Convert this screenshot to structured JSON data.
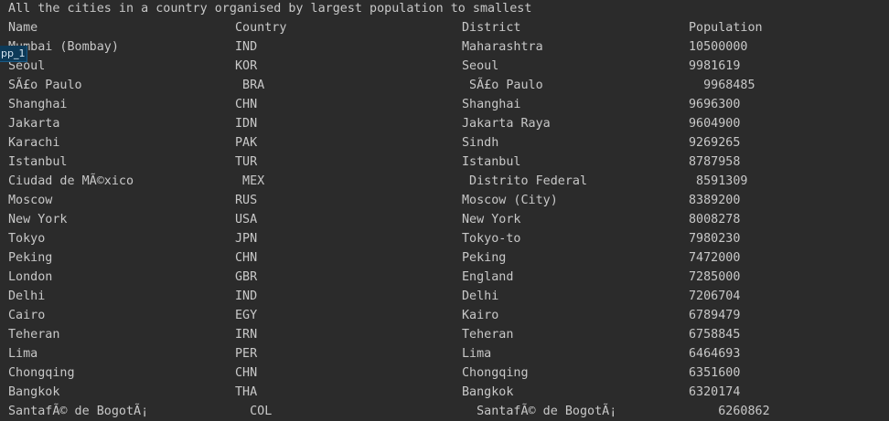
{
  "console": {
    "title_line": "All the cities in a country organised by largest population to smallest",
    "headers": [
      "Name",
      "Country",
      "District",
      "Population"
    ],
    "rows": [
      {
        "name": "Mumbai (Bombay)",
        "country": "IND",
        "district": "Maharashtra",
        "population": "10500000"
      },
      {
        "name": "Seoul",
        "country": "KOR",
        "district": "Seoul",
        "population": "9981619"
      },
      {
        "name": "SÃ£o Paulo",
        "country": " BRA",
        "district": " SÃ£o Paulo",
        "population": "  9968485"
      },
      {
        "name": "Shanghai",
        "country": "CHN",
        "district": "Shanghai",
        "population": "9696300"
      },
      {
        "name": "Jakarta",
        "country": "IDN",
        "district": "Jakarta Raya",
        "population": "9604900"
      },
      {
        "name": "Karachi",
        "country": "PAK",
        "district": "Sindh",
        "population": "9269265"
      },
      {
        "name": "Istanbul",
        "country": "TUR",
        "district": "Istanbul",
        "population": "8787958"
      },
      {
        "name": "Ciudad de MÃ©xico",
        "country": " MEX",
        "district": " Distrito Federal",
        "population": " 8591309"
      },
      {
        "name": "Moscow",
        "country": "RUS",
        "district": "Moscow (City)",
        "population": "8389200"
      },
      {
        "name": "New York",
        "country": "USA",
        "district": "New York",
        "population": "8008278"
      },
      {
        "name": "Tokyo",
        "country": "JPN",
        "district": "Tokyo-to",
        "population": "7980230"
      },
      {
        "name": "Peking",
        "country": "CHN",
        "district": "Peking",
        "population": "7472000"
      },
      {
        "name": "London",
        "country": "GBR",
        "district": "England",
        "population": "7285000"
      },
      {
        "name": "Delhi",
        "country": "IND",
        "district": "Delhi",
        "population": "7206704"
      },
      {
        "name": "Cairo",
        "country": "EGY",
        "district": "Kairo",
        "population": "6789479"
      },
      {
        "name": "Teheran",
        "country": "IRN",
        "district": "Teheran",
        "population": "6758845"
      },
      {
        "name": "Lima",
        "country": "PER",
        "district": "Lima",
        "population": "6464693"
      },
      {
        "name": "Chongqing",
        "country": "CHN",
        "district": "Chongqing",
        "population": "6351600"
      },
      {
        "name": "Bangkok",
        "country": "THA",
        "district": "Bangkok",
        "population": "6320174"
      },
      {
        "name": "SantafÃ© de BogotÃ¡",
        "country": "  COL",
        "district": "  SantafÃ© de BogotÃ¡",
        "population": "    6260862"
      }
    ]
  },
  "overlay_tag": {
    "label": "pp_1"
  },
  "colors": {
    "background": "#2b2b2b",
    "text": "#c8c8c8",
    "tag_background": "#0d3a58"
  }
}
